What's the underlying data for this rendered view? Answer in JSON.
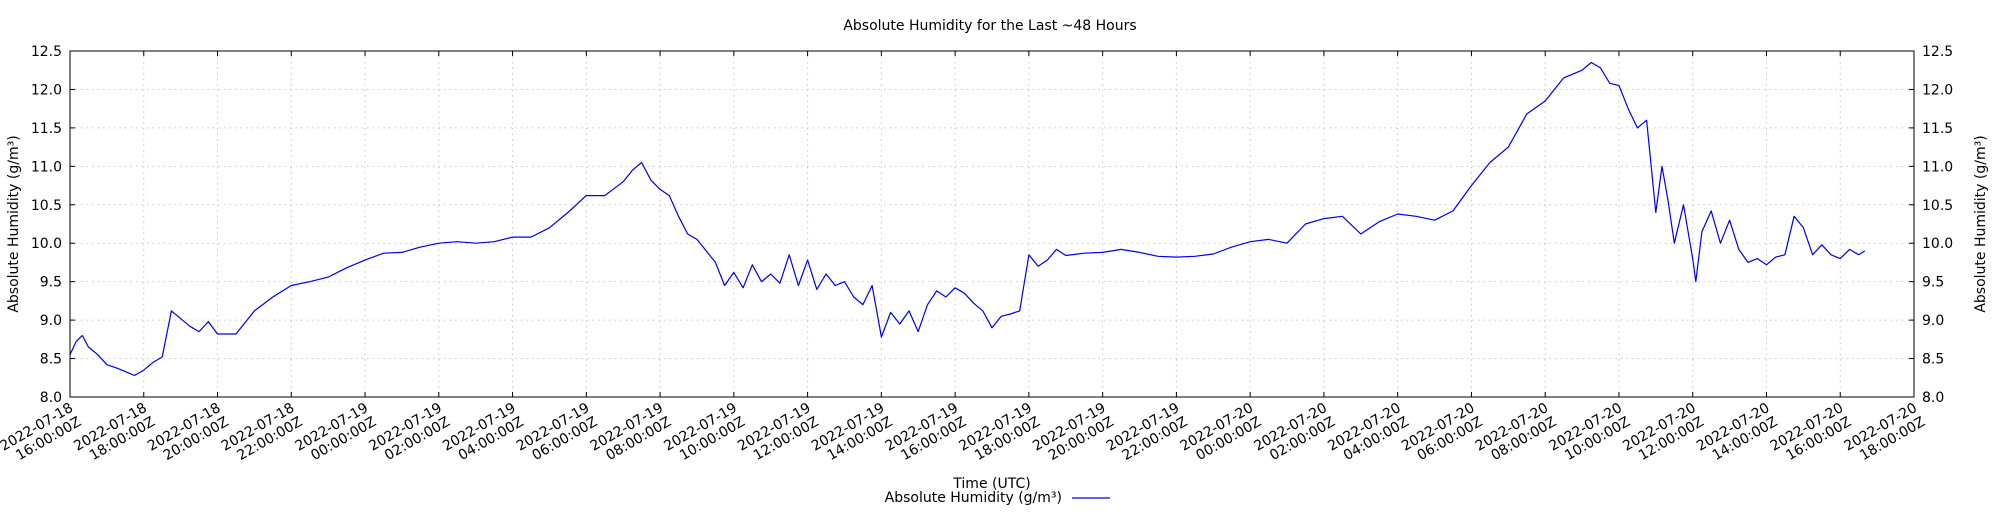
{
  "chart_data": {
    "type": "line",
    "title": "Absolute Humidity for the Last ~48 Hours",
    "xlabel": "Time (UTC)",
    "ylabel": "Absolute Humidity (g/m³)",
    "y2label": "Absolute Humidity (g/m³)",
    "ylim": [
      8.0,
      12.5
    ],
    "yticks": [
      "8.0",
      "8.5",
      "9.0",
      "9.5",
      "10.0",
      "10.5",
      "11.0",
      "11.5",
      "12.0",
      "12.5"
    ],
    "xlim": [
      "2022-07-18T16:00:00Z",
      "2022-07-20T18:00:00Z"
    ],
    "xticks": [
      [
        "2022-07-18",
        "16:00:00Z"
      ],
      [
        "2022-07-18",
        "18:00:00Z"
      ],
      [
        "2022-07-18",
        "20:00:00Z"
      ],
      [
        "2022-07-18",
        "22:00:00Z"
      ],
      [
        "2022-07-19",
        "00:00:00Z"
      ],
      [
        "2022-07-19",
        "02:00:00Z"
      ],
      [
        "2022-07-19",
        "04:00:00Z"
      ],
      [
        "2022-07-19",
        "06:00:00Z"
      ],
      [
        "2022-07-19",
        "08:00:00Z"
      ],
      [
        "2022-07-19",
        "10:00:00Z"
      ],
      [
        "2022-07-19",
        "12:00:00Z"
      ],
      [
        "2022-07-19",
        "14:00:00Z"
      ],
      [
        "2022-07-19",
        "16:00:00Z"
      ],
      [
        "2022-07-19",
        "18:00:00Z"
      ],
      [
        "2022-07-19",
        "20:00:00Z"
      ],
      [
        "2022-07-19",
        "22:00:00Z"
      ],
      [
        "2022-07-20",
        "00:00:00Z"
      ],
      [
        "2022-07-20",
        "02:00:00Z"
      ],
      [
        "2022-07-20",
        "04:00:00Z"
      ],
      [
        "2022-07-20",
        "06:00:00Z"
      ],
      [
        "2022-07-20",
        "08:00:00Z"
      ],
      [
        "2022-07-20",
        "10:00:00Z"
      ],
      [
        "2022-07-20",
        "12:00:00Z"
      ],
      [
        "2022-07-20",
        "14:00:00Z"
      ],
      [
        "2022-07-20",
        "16:00:00Z"
      ],
      [
        "2022-07-20",
        "18:00:00Z"
      ]
    ],
    "grid": true,
    "legend_position": "bottom-center",
    "series": [
      {
        "name": "Absolute Humidity (g/m³)",
        "color": "#0000ee",
        "points": [
          [
            "2022-07-18T16:00:00Z",
            8.55
          ],
          [
            "2022-07-18T16:10:00Z",
            8.72
          ],
          [
            "2022-07-18T16:20:00Z",
            8.8
          ],
          [
            "2022-07-18T16:30:00Z",
            8.65
          ],
          [
            "2022-07-18T16:45:00Z",
            8.55
          ],
          [
            "2022-07-18T17:00:00Z",
            8.42
          ],
          [
            "2022-07-18T17:15:00Z",
            8.38
          ],
          [
            "2022-07-18T17:30:00Z",
            8.33
          ],
          [
            "2022-07-18T17:45:00Z",
            8.28
          ],
          [
            "2022-07-18T18:00:00Z",
            8.35
          ],
          [
            "2022-07-18T18:15:00Z",
            8.45
          ],
          [
            "2022-07-18T18:30:00Z",
            8.52
          ],
          [
            "2022-07-18T18:45:00Z",
            9.12
          ],
          [
            "2022-07-18T19:00:00Z",
            9.02
          ],
          [
            "2022-07-18T19:15:00Z",
            8.92
          ],
          [
            "2022-07-18T19:30:00Z",
            8.85
          ],
          [
            "2022-07-18T19:45:00Z",
            8.98
          ],
          [
            "2022-07-18T20:00:00Z",
            8.82
          ],
          [
            "2022-07-18T20:30:00Z",
            8.82
          ],
          [
            "2022-07-18T21:00:00Z",
            9.12
          ],
          [
            "2022-07-18T21:30:00Z",
            9.3
          ],
          [
            "2022-07-18T22:00:00Z",
            9.45
          ],
          [
            "2022-07-18T22:30:00Z",
            9.5
          ],
          [
            "2022-07-18T23:00:00Z",
            9.56
          ],
          [
            "2022-07-18T23:30:00Z",
            9.68
          ],
          [
            "2022-07-19T00:00:00Z",
            9.78
          ],
          [
            "2022-07-19T00:30:00Z",
            9.87
          ],
          [
            "2022-07-19T01:00:00Z",
            9.88
          ],
          [
            "2022-07-19T01:30:00Z",
            9.95
          ],
          [
            "2022-07-19T02:00:00Z",
            10.0
          ],
          [
            "2022-07-19T02:30:00Z",
            10.02
          ],
          [
            "2022-07-19T03:00:00Z",
            10.0
          ],
          [
            "2022-07-19T03:30:00Z",
            10.02
          ],
          [
            "2022-07-19T04:00:00Z",
            10.08
          ],
          [
            "2022-07-19T04:30:00Z",
            10.08
          ],
          [
            "2022-07-19T05:00:00Z",
            10.2
          ],
          [
            "2022-07-19T05:30:00Z",
            10.4
          ],
          [
            "2022-07-19T06:00:00Z",
            10.62
          ],
          [
            "2022-07-19T06:30:00Z",
            10.62
          ],
          [
            "2022-07-19T07:00:00Z",
            10.8
          ],
          [
            "2022-07-19T07:15:00Z",
            10.95
          ],
          [
            "2022-07-19T07:30:00Z",
            11.05
          ],
          [
            "2022-07-19T07:45:00Z",
            10.82
          ],
          [
            "2022-07-19T08:00:00Z",
            10.7
          ],
          [
            "2022-07-19T08:15:00Z",
            10.62
          ],
          [
            "2022-07-19T08:30:00Z",
            10.35
          ],
          [
            "2022-07-19T08:45:00Z",
            10.12
          ],
          [
            "2022-07-19T09:00:00Z",
            10.05
          ],
          [
            "2022-07-19T09:15:00Z",
            9.9
          ],
          [
            "2022-07-19T09:30:00Z",
            9.75
          ],
          [
            "2022-07-19T09:45:00Z",
            9.45
          ],
          [
            "2022-07-19T10:00:00Z",
            9.62
          ],
          [
            "2022-07-19T10:15:00Z",
            9.42
          ],
          [
            "2022-07-19T10:30:00Z",
            9.72
          ],
          [
            "2022-07-19T10:45:00Z",
            9.5
          ],
          [
            "2022-07-19T11:00:00Z",
            9.6
          ],
          [
            "2022-07-19T11:15:00Z",
            9.48
          ],
          [
            "2022-07-19T11:30:00Z",
            9.85
          ],
          [
            "2022-07-19T11:45:00Z",
            9.45
          ],
          [
            "2022-07-19T12:00:00Z",
            9.78
          ],
          [
            "2022-07-19T12:15:00Z",
            9.4
          ],
          [
            "2022-07-19T12:30:00Z",
            9.6
          ],
          [
            "2022-07-19T12:45:00Z",
            9.45
          ],
          [
            "2022-07-19T13:00:00Z",
            9.5
          ],
          [
            "2022-07-19T13:15:00Z",
            9.3
          ],
          [
            "2022-07-19T13:30:00Z",
            9.2
          ],
          [
            "2022-07-19T13:45:00Z",
            9.45
          ],
          [
            "2022-07-19T14:00:00Z",
            8.78
          ],
          [
            "2022-07-19T14:15:00Z",
            9.1
          ],
          [
            "2022-07-19T14:30:00Z",
            8.95
          ],
          [
            "2022-07-19T14:45:00Z",
            9.12
          ],
          [
            "2022-07-19T15:00:00Z",
            8.85
          ],
          [
            "2022-07-19T15:15:00Z",
            9.2
          ],
          [
            "2022-07-19T15:30:00Z",
            9.38
          ],
          [
            "2022-07-19T15:45:00Z",
            9.3
          ],
          [
            "2022-07-19T16:00:00Z",
            9.42
          ],
          [
            "2022-07-19T16:15:00Z",
            9.35
          ],
          [
            "2022-07-19T16:30:00Z",
            9.22
          ],
          [
            "2022-07-19T16:45:00Z",
            9.12
          ],
          [
            "2022-07-19T17:00:00Z",
            8.9
          ],
          [
            "2022-07-19T17:15:00Z",
            9.05
          ],
          [
            "2022-07-19T17:30:00Z",
            9.08
          ],
          [
            "2022-07-19T17:45:00Z",
            9.12
          ],
          [
            "2022-07-19T18:00:00Z",
            9.85
          ],
          [
            "2022-07-19T18:15:00Z",
            9.7
          ],
          [
            "2022-07-19T18:30:00Z",
            9.78
          ],
          [
            "2022-07-19T18:45:00Z",
            9.92
          ],
          [
            "2022-07-19T19:00:00Z",
            9.84
          ],
          [
            "2022-07-19T19:30:00Z",
            9.87
          ],
          [
            "2022-07-19T20:00:00Z",
            9.88
          ],
          [
            "2022-07-19T20:30:00Z",
            9.92
          ],
          [
            "2022-07-19T21:00:00Z",
            9.88
          ],
          [
            "2022-07-19T21:30:00Z",
            9.83
          ],
          [
            "2022-07-19T22:00:00Z",
            9.82
          ],
          [
            "2022-07-19T22:30:00Z",
            9.83
          ],
          [
            "2022-07-19T23:00:00Z",
            9.86
          ],
          [
            "2022-07-19T23:30:00Z",
            9.95
          ],
          [
            "2022-07-20T00:00:00Z",
            10.02
          ],
          [
            "2022-07-20T00:30:00Z",
            10.05
          ],
          [
            "2022-07-20T01:00:00Z",
            10.0
          ],
          [
            "2022-07-20T01:30:00Z",
            10.25
          ],
          [
            "2022-07-20T02:00:00Z",
            10.32
          ],
          [
            "2022-07-20T02:30:00Z",
            10.35
          ],
          [
            "2022-07-20T03:00:00Z",
            10.12
          ],
          [
            "2022-07-20T03:30:00Z",
            10.28
          ],
          [
            "2022-07-20T04:00:00Z",
            10.38
          ],
          [
            "2022-07-20T04:30:00Z",
            10.35
          ],
          [
            "2022-07-20T05:00:00Z",
            10.3
          ],
          [
            "2022-07-20T05:30:00Z",
            10.42
          ],
          [
            "2022-07-20T06:00:00Z",
            10.75
          ],
          [
            "2022-07-20T06:30:00Z",
            11.05
          ],
          [
            "2022-07-20T07:00:00Z",
            11.25
          ],
          [
            "2022-07-20T07:30:00Z",
            11.68
          ],
          [
            "2022-07-20T08:00:00Z",
            11.85
          ],
          [
            "2022-07-20T08:30:00Z",
            12.15
          ],
          [
            "2022-07-20T09:00:00Z",
            12.25
          ],
          [
            "2022-07-20T09:15:00Z",
            12.35
          ],
          [
            "2022-07-20T09:30:00Z",
            12.28
          ],
          [
            "2022-07-20T09:45:00Z",
            12.08
          ],
          [
            "2022-07-20T10:00:00Z",
            12.05
          ],
          [
            "2022-07-20T10:15:00Z",
            11.75
          ],
          [
            "2022-07-20T10:30:00Z",
            11.5
          ],
          [
            "2022-07-20T10:45:00Z",
            11.6
          ],
          [
            "2022-07-20T11:00:00Z",
            10.4
          ],
          [
            "2022-07-20T11:10:00Z",
            11.0
          ],
          [
            "2022-07-20T11:20:00Z",
            10.55
          ],
          [
            "2022-07-20T11:30:00Z",
            10.0
          ],
          [
            "2022-07-20T11:45:00Z",
            10.5
          ],
          [
            "2022-07-20T12:00:00Z",
            9.8
          ],
          [
            "2022-07-20T12:05:00Z",
            9.5
          ],
          [
            "2022-07-20T12:15:00Z",
            10.15
          ],
          [
            "2022-07-20T12:30:00Z",
            10.42
          ],
          [
            "2022-07-20T12:45:00Z",
            10.0
          ],
          [
            "2022-07-20T13:00:00Z",
            10.3
          ],
          [
            "2022-07-20T13:15:00Z",
            9.92
          ],
          [
            "2022-07-20T13:30:00Z",
            9.75
          ],
          [
            "2022-07-20T13:45:00Z",
            9.8
          ],
          [
            "2022-07-20T14:00:00Z",
            9.72
          ],
          [
            "2022-07-20T14:15:00Z",
            9.82
          ],
          [
            "2022-07-20T14:30:00Z",
            9.85
          ],
          [
            "2022-07-20T14:45:00Z",
            10.35
          ],
          [
            "2022-07-20T15:00:00Z",
            10.2
          ],
          [
            "2022-07-20T15:15:00Z",
            9.85
          ],
          [
            "2022-07-20T15:30:00Z",
            9.98
          ],
          [
            "2022-07-20T15:45:00Z",
            9.85
          ],
          [
            "2022-07-20T16:00:00Z",
            9.8
          ],
          [
            "2022-07-20T16:15:00Z",
            9.92
          ],
          [
            "2022-07-20T16:30:00Z",
            9.85
          ],
          [
            "2022-07-20T16:40:00Z",
            9.9
          ]
        ]
      }
    ]
  }
}
